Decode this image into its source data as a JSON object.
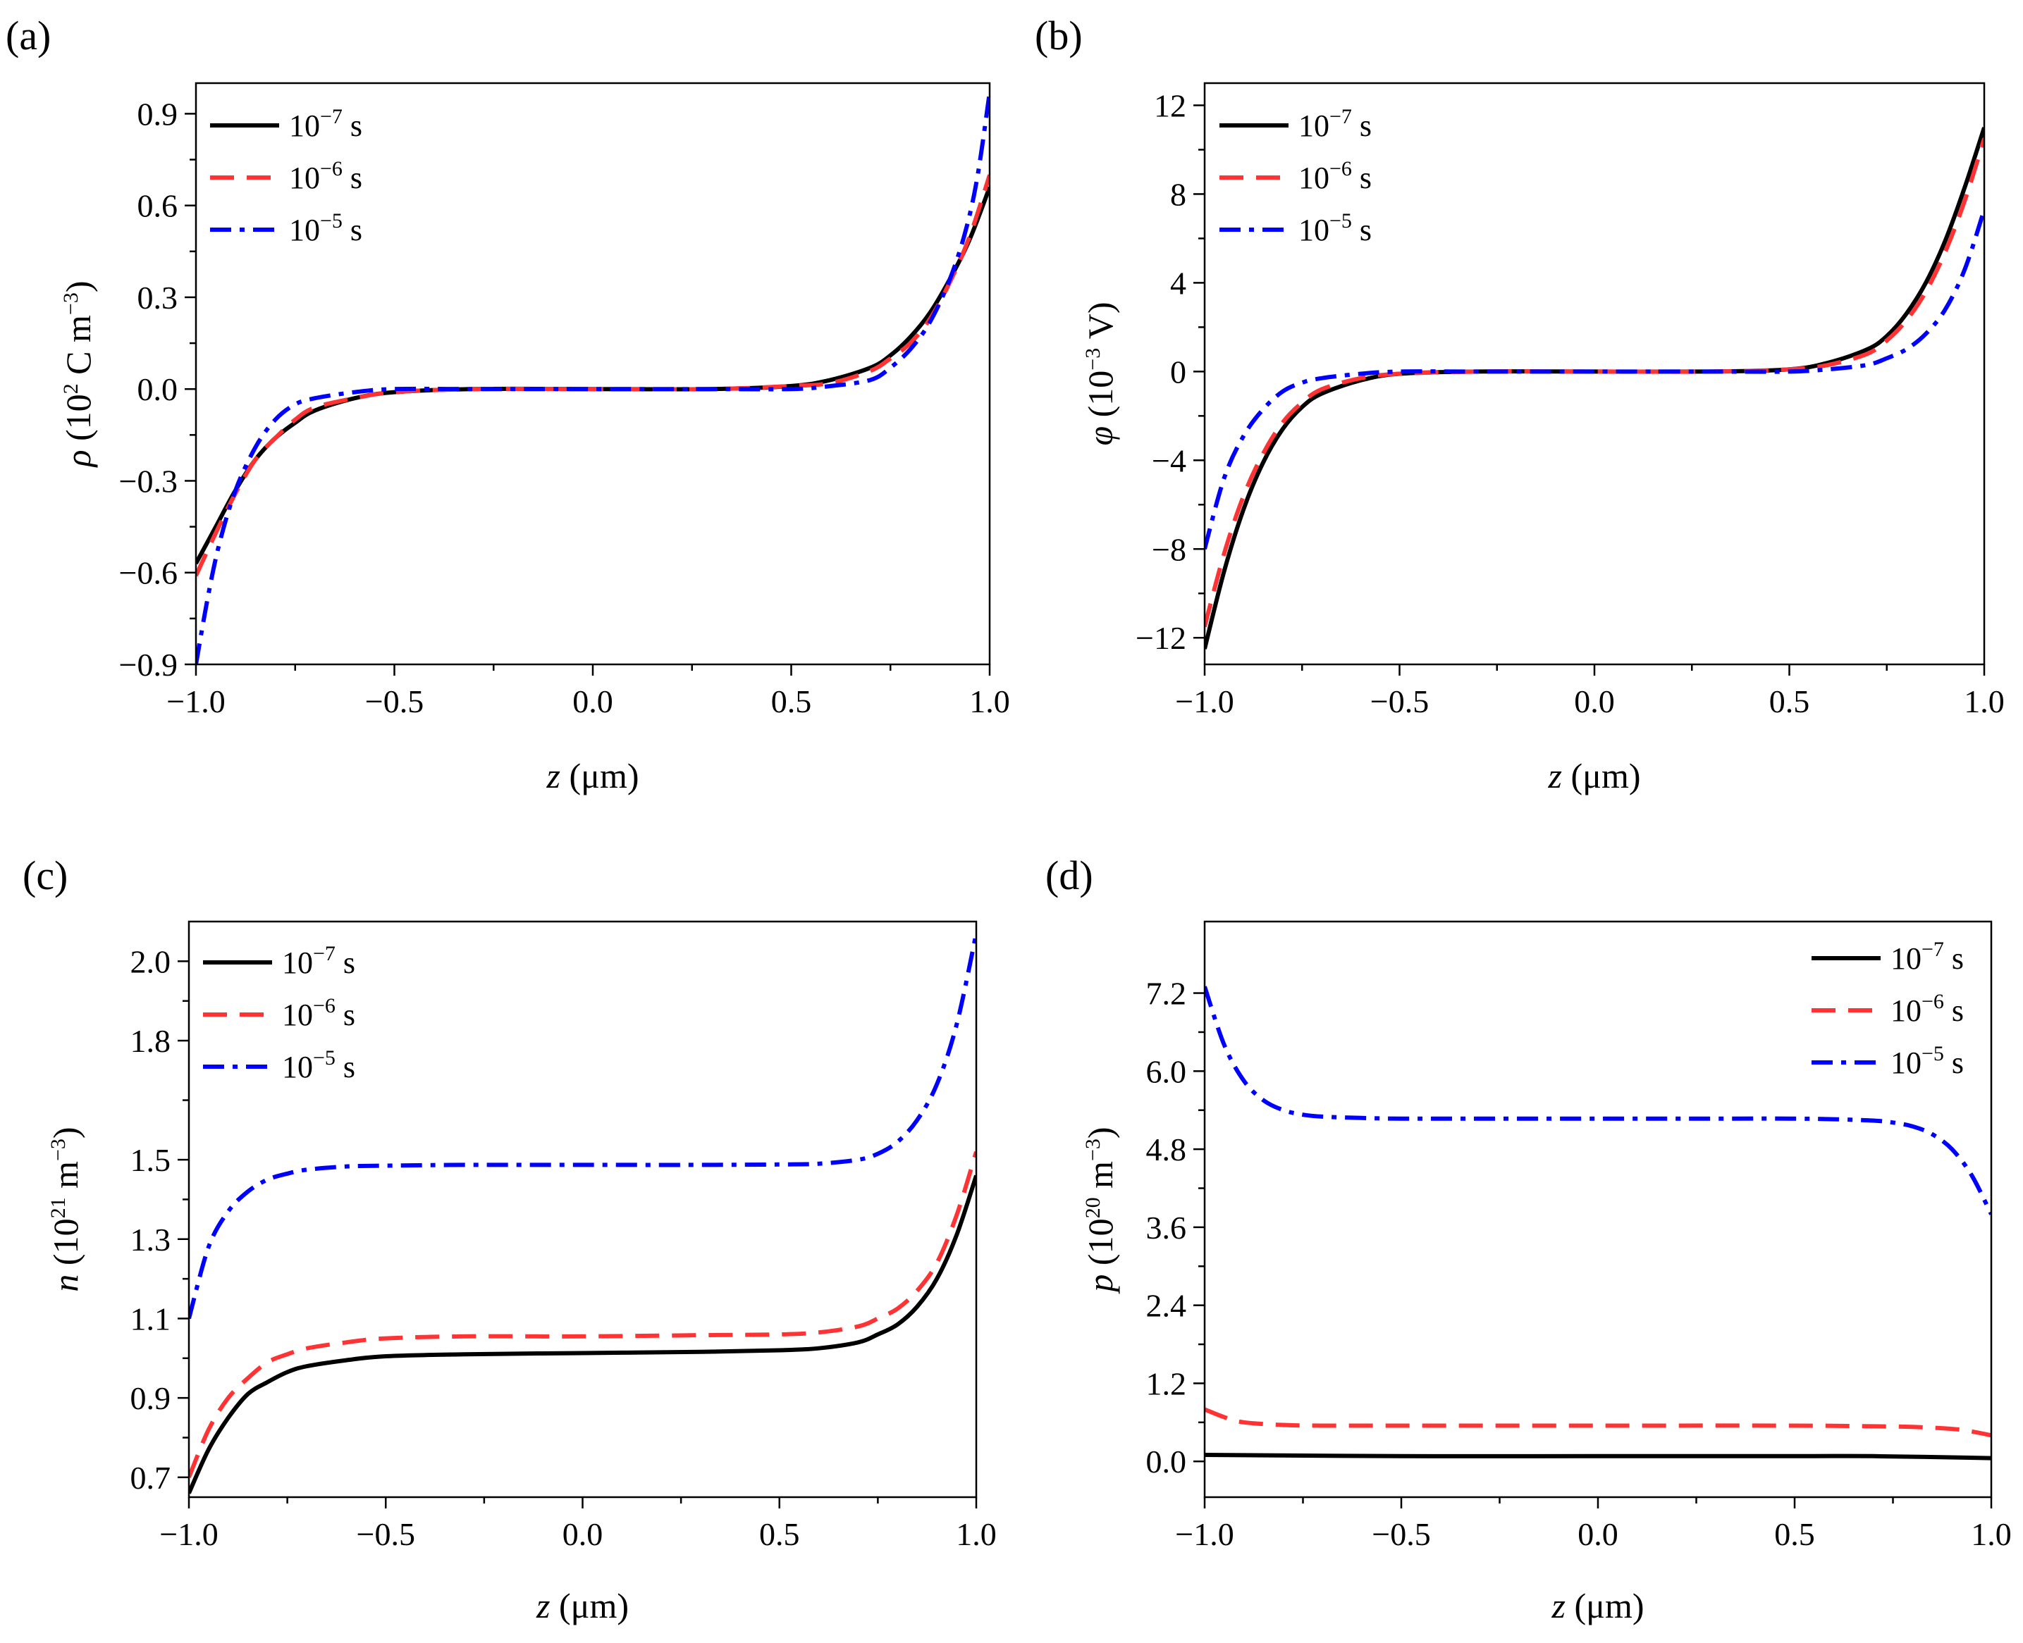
{
  "figure": {
    "panels": [
      "(a)",
      "(b)",
      "(c)",
      "(d)"
    ]
  },
  "legend": {
    "entries": [
      {
        "base": "10",
        "exp": "−7",
        "unit": " s",
        "color": "#000000",
        "dash": "solid"
      },
      {
        "base": "10",
        "exp": "−6",
        "unit": " s",
        "color": "#ff3333",
        "dash": "dashed"
      },
      {
        "base": "10",
        "exp": "−5",
        "unit": " s",
        "color": "#0000ff",
        "dash": "dashdot"
      }
    ]
  },
  "chart_data": [
    {
      "panel": "(a)",
      "type": "line",
      "xlabel": {
        "var": "z",
        "unit": " (μm)"
      },
      "ylabel": {
        "var": "ρ",
        "pre": " (10",
        "sup1": "2",
        "mid": " C m",
        "sup2": "−3",
        "post": ")"
      },
      "xlim": [
        -1.0,
        1.0
      ],
      "ylim": [
        -0.9,
        1.0
      ],
      "xticks": [
        -1.0,
        -0.5,
        0.0,
        0.5,
        1.0
      ],
      "xtick_labels": [
        "−1.0",
        "−0.5",
        "0.0",
        "0.5",
        "1.0"
      ],
      "yticks": [
        -0.9,
        -0.6,
        -0.3,
        0.0,
        0.3,
        0.6,
        0.9
      ],
      "ytick_labels": [
        "−0.9",
        "−0.6",
        "−0.3",
        "0.0",
        "0.3",
        "0.6",
        "0.9"
      ],
      "legend_position": "top-left",
      "series": [
        {
          "name": "1e-7 s",
          "x": [
            -1.0,
            -0.95,
            -0.9,
            -0.85,
            -0.8,
            -0.75,
            -0.7,
            -0.6,
            -0.5,
            -0.3,
            0.0,
            0.3,
            0.5,
            0.6,
            0.7,
            0.75,
            0.8,
            0.85,
            0.9,
            0.95,
            1.0
          ],
          "y": [
            -0.57,
            -0.45,
            -0.33,
            -0.23,
            -0.16,
            -0.11,
            -0.07,
            -0.03,
            -0.01,
            0.0,
            0.0,
            0.0,
            0.01,
            0.03,
            0.07,
            0.11,
            0.17,
            0.25,
            0.36,
            0.49,
            0.66
          ]
        },
        {
          "name": "1e-6 s",
          "x": [
            -1.0,
            -0.95,
            -0.9,
            -0.85,
            -0.8,
            -0.75,
            -0.7,
            -0.6,
            -0.5,
            -0.3,
            0.0,
            0.3,
            0.5,
            0.6,
            0.7,
            0.75,
            0.8,
            0.85,
            0.9,
            0.95,
            1.0
          ],
          "y": [
            -0.61,
            -0.47,
            -0.34,
            -0.23,
            -0.16,
            -0.1,
            -0.06,
            -0.03,
            -0.01,
            0.0,
            0.0,
            0.0,
            0.01,
            0.02,
            0.06,
            0.1,
            0.15,
            0.23,
            0.35,
            0.5,
            0.7
          ]
        },
        {
          "name": "1e-5 s",
          "x": [
            -1.0,
            -0.97,
            -0.94,
            -0.9,
            -0.85,
            -0.8,
            -0.75,
            -0.7,
            -0.6,
            -0.5,
            -0.3,
            0.0,
            0.3,
            0.5,
            0.6,
            0.7,
            0.75,
            0.8,
            0.85,
            0.9,
            0.94,
            0.97,
            1.0
          ],
          "y": [
            -0.9,
            -0.68,
            -0.5,
            -0.33,
            -0.19,
            -0.1,
            -0.05,
            -0.03,
            -0.01,
            0.0,
            0.0,
            0.0,
            0.0,
            0.0,
            0.01,
            0.03,
            0.07,
            0.13,
            0.22,
            0.36,
            0.52,
            0.7,
            0.97
          ]
        }
      ]
    },
    {
      "panel": "(b)",
      "type": "line",
      "xlabel": {
        "var": "z",
        "unit": " (μm)"
      },
      "ylabel": {
        "var": "φ",
        "pre": " (10",
        "sup1": "−3",
        "mid": " V)",
        "sup2": "",
        "post": ""
      },
      "xlim": [
        -1.0,
        1.0
      ],
      "ylim": [
        -13.2,
        13.0
      ],
      "xticks": [
        -1.0,
        -0.5,
        0.0,
        0.5,
        1.0
      ],
      "xtick_labels": [
        "−1.0",
        "−0.5",
        "0.0",
        "0.5",
        "1.0"
      ],
      "yticks": [
        -12,
        -8,
        -4,
        0,
        4,
        8,
        12
      ],
      "ytick_labels": [
        "−12",
        "−8",
        "−4",
        "0",
        "4",
        "8",
        "12"
      ],
      "legend_position": "top-left",
      "series": [
        {
          "name": "1e-7 s",
          "x": [
            -1.0,
            -0.95,
            -0.9,
            -0.85,
            -0.8,
            -0.75,
            -0.7,
            -0.6,
            -0.5,
            -0.3,
            0.0,
            0.3,
            0.5,
            0.6,
            0.7,
            0.75,
            0.8,
            0.85,
            0.9,
            0.95,
            1.0
          ],
          "y": [
            -12.5,
            -9.0,
            -6.2,
            -4.1,
            -2.6,
            -1.6,
            -1.0,
            -0.4,
            -0.1,
            0.0,
            0.0,
            0.0,
            0.1,
            0.4,
            1.0,
            1.6,
            2.6,
            4.0,
            5.9,
            8.3,
            11.0
          ]
        },
        {
          "name": "1e-6 s",
          "x": [
            -1.0,
            -0.95,
            -0.9,
            -0.85,
            -0.8,
            -0.75,
            -0.7,
            -0.6,
            -0.5,
            -0.3,
            0.0,
            0.3,
            0.5,
            0.6,
            0.7,
            0.75,
            0.8,
            0.85,
            0.9,
            0.95,
            1.0
          ],
          "y": [
            -11.5,
            -8.2,
            -5.6,
            -3.7,
            -2.3,
            -1.4,
            -0.8,
            -0.3,
            -0.1,
            0.0,
            0.0,
            0.0,
            0.1,
            0.3,
            0.8,
            1.4,
            2.3,
            3.6,
            5.4,
            7.7,
            10.5
          ]
        },
        {
          "name": "1e-5 s",
          "x": [
            -1.0,
            -0.95,
            -0.9,
            -0.85,
            -0.8,
            -0.75,
            -0.7,
            -0.6,
            -0.5,
            -0.3,
            0.0,
            0.3,
            0.5,
            0.6,
            0.7,
            0.75,
            0.8,
            0.85,
            0.9,
            0.95,
            1.0
          ],
          "y": [
            -8.0,
            -4.8,
            -2.9,
            -1.7,
            -0.9,
            -0.5,
            -0.3,
            -0.1,
            0.0,
            0.0,
            0.0,
            0.0,
            0.0,
            0.1,
            0.3,
            0.6,
            1.0,
            1.7,
            2.8,
            4.6,
            7.3
          ]
        }
      ]
    },
    {
      "panel": "(c)",
      "type": "line",
      "xlabel": {
        "var": "z",
        "unit": " (μm)"
      },
      "ylabel": {
        "var": "n",
        "pre": " (10",
        "sup1": "21",
        "mid": " m",
        "sup2": "−3",
        "post": ")"
      },
      "xlim": [
        -1.0,
        1.0
      ],
      "ylim": [
        0.65,
        2.1
      ],
      "xticks": [
        -1.0,
        -0.5,
        0.0,
        0.5,
        1.0
      ],
      "xtick_labels": [
        "−1.0",
        "−0.5",
        "0.0",
        "0.5",
        "1.0"
      ],
      "yticks": [
        0.7,
        0.9,
        1.1,
        1.3,
        1.5,
        1.8,
        2.0
      ],
      "ytick_labels": [
        "0.7",
        "0.9",
        "1.1",
        "1.3",
        "1.5",
        "1.8",
        "2.0"
      ],
      "legend_position": "top-left",
      "series": [
        {
          "name": "1e-7 s",
          "x": [
            -1.0,
            -0.95,
            -0.9,
            -0.85,
            -0.8,
            -0.75,
            -0.7,
            -0.6,
            -0.5,
            -0.3,
            0.0,
            0.3,
            0.5,
            0.6,
            0.7,
            0.75,
            0.8,
            0.85,
            0.9,
            0.95,
            1.0
          ],
          "y": [
            0.66,
            0.77,
            0.85,
            0.91,
            0.94,
            0.965,
            0.98,
            0.995,
            1.005,
            1.01,
            1.013,
            1.016,
            1.02,
            1.025,
            1.04,
            1.06,
            1.085,
            1.13,
            1.2,
            1.31,
            1.46
          ]
        },
        {
          "name": "1e-6 s",
          "x": [
            -1.0,
            -0.95,
            -0.9,
            -0.85,
            -0.8,
            -0.75,
            -0.7,
            -0.6,
            -0.5,
            -0.3,
            0.0,
            0.3,
            0.5,
            0.6,
            0.7,
            0.75,
            0.8,
            0.85,
            0.9,
            0.95,
            1.0
          ],
          "y": [
            0.7,
            0.82,
            0.9,
            0.95,
            0.99,
            1.01,
            1.025,
            1.04,
            1.05,
            1.055,
            1.055,
            1.058,
            1.06,
            1.065,
            1.08,
            1.1,
            1.125,
            1.17,
            1.24,
            1.36,
            1.52
          ]
        },
        {
          "name": "1e-5 s",
          "x": [
            -1.0,
            -0.95,
            -0.9,
            -0.85,
            -0.8,
            -0.75,
            -0.7,
            -0.6,
            -0.5,
            -0.3,
            0.0,
            0.3,
            0.5,
            0.6,
            0.7,
            0.75,
            0.8,
            0.85,
            0.9,
            0.95,
            1.0
          ],
          "y": [
            1.1,
            1.28,
            1.37,
            1.42,
            1.45,
            1.465,
            1.475,
            1.483,
            1.485,
            1.487,
            1.487,
            1.487,
            1.488,
            1.49,
            1.5,
            1.515,
            1.545,
            1.6,
            1.69,
            1.84,
            2.07
          ]
        }
      ]
    },
    {
      "panel": "(d)",
      "type": "line",
      "xlabel": {
        "var": "z",
        "unit": " (μm)"
      },
      "ylabel": {
        "var": "p",
        "pre": " (10",
        "sup1": "20",
        "mid": " m",
        "sup2": "−3",
        "post": ")"
      },
      "xlim": [
        -1.0,
        1.0
      ],
      "ylim": [
        -0.55,
        8.3
      ],
      "xticks": [
        -1.0,
        -0.5,
        0.0,
        0.5,
        1.0
      ],
      "xtick_labels": [
        "−1.0",
        "−0.5",
        "0.0",
        "0.5",
        "1.0"
      ],
      "yticks": [
        0.0,
        1.2,
        2.4,
        3.6,
        4.8,
        6.0,
        7.2
      ],
      "ytick_labels": [
        "0.0",
        "1.2",
        "2.4",
        "3.6",
        "4.8",
        "6.0",
        "7.2"
      ],
      "legend_position": "top-right",
      "series": [
        {
          "name": "1e-7 s",
          "x": [
            -1.0,
            -0.5,
            0.0,
            0.5,
            0.7,
            1.0
          ],
          "y": [
            0.1,
            0.08,
            0.08,
            0.08,
            0.08,
            0.05
          ]
        },
        {
          "name": "1e-6 s",
          "x": [
            -1.0,
            -0.95,
            -0.9,
            -0.8,
            -0.7,
            -0.5,
            0.0,
            0.5,
            0.7,
            0.8,
            0.9,
            0.95,
            1.0
          ],
          "y": [
            0.8,
            0.68,
            0.6,
            0.56,
            0.55,
            0.55,
            0.55,
            0.55,
            0.54,
            0.53,
            0.5,
            0.46,
            0.4
          ]
        },
        {
          "name": "1e-5 s",
          "x": [
            -1.0,
            -0.95,
            -0.9,
            -0.85,
            -0.8,
            -0.75,
            -0.7,
            -0.6,
            -0.5,
            -0.3,
            0.0,
            0.3,
            0.5,
            0.6,
            0.7,
            0.75,
            0.8,
            0.85,
            0.9,
            0.95,
            1.0
          ],
          "y": [
            7.3,
            6.4,
            5.85,
            5.55,
            5.4,
            5.33,
            5.3,
            5.28,
            5.27,
            5.27,
            5.27,
            5.27,
            5.27,
            5.26,
            5.24,
            5.21,
            5.15,
            5.03,
            4.8,
            4.4,
            3.8
          ]
        }
      ]
    }
  ]
}
